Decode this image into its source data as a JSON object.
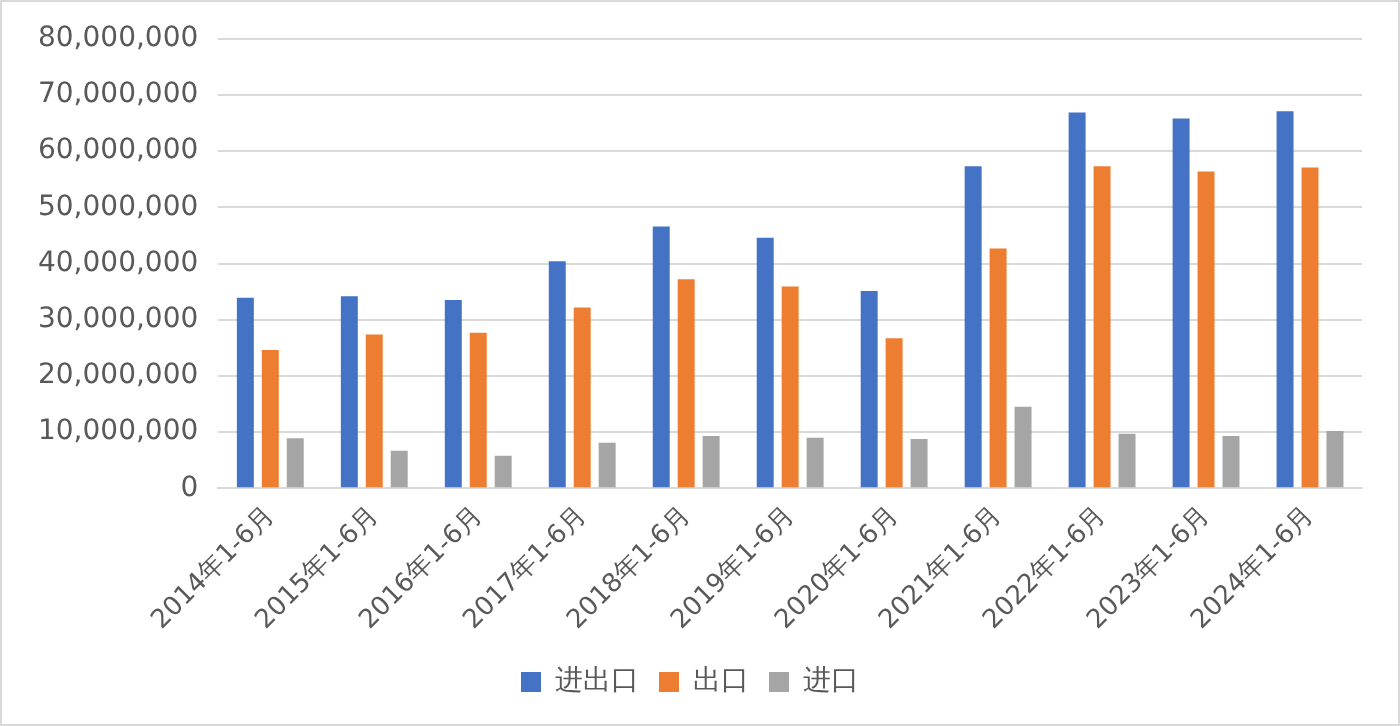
{
  "chart_data": {
    "type": "bar",
    "categories": [
      "2014年1-6月",
      "2015年1-6月",
      "2016年1-6月",
      "2017年1-6月",
      "2018年1-6月",
      "2019年1-6月",
      "2020年1-6月",
      "2021年1-6月",
      "2022年1-6月",
      "2023年1-6月",
      "2024年1-6月"
    ],
    "series": [
      {
        "name": "进出口",
        "color": "#4472c4",
        "values": [
          33900000,
          34200000,
          33500000,
          40400000,
          46600000,
          44600000,
          35100000,
          57300000,
          66900000,
          65800000,
          67100000
        ]
      },
      {
        "name": "出口",
        "color": "#ed7d31",
        "values": [
          24600000,
          27400000,
          27700000,
          32200000,
          37200000,
          35900000,
          26700000,
          42700000,
          57300000,
          56400000,
          57100000
        ]
      },
      {
        "name": "进口",
        "color": "#a5a5a5",
        "values": [
          8900000,
          6700000,
          5800000,
          8100000,
          9300000,
          9000000,
          8800000,
          14500000,
          9700000,
          9300000,
          10200000
        ]
      }
    ],
    "ylim": [
      0,
      80000000
    ],
    "yticks": [
      0,
      {
        "value": 10000000,
        "label": "10,000,000"
      },
      {
        "value": 20000000,
        "label": "20,000,000"
      },
      {
        "value": 30000000,
        "label": "30,000,000"
      },
      {
        "value": 40000000,
        "label": "40,000,000"
      },
      {
        "value": 50000000,
        "label": "50,000,000"
      },
      {
        "value": 60000000,
        "label": "60,000,000"
      },
      {
        "value": 70000000,
        "label": "70,000,000"
      },
      {
        "value": 80000000,
        "label": "80,000,000"
      }
    ],
    "grid": "y",
    "legend": "bottom"
  }
}
